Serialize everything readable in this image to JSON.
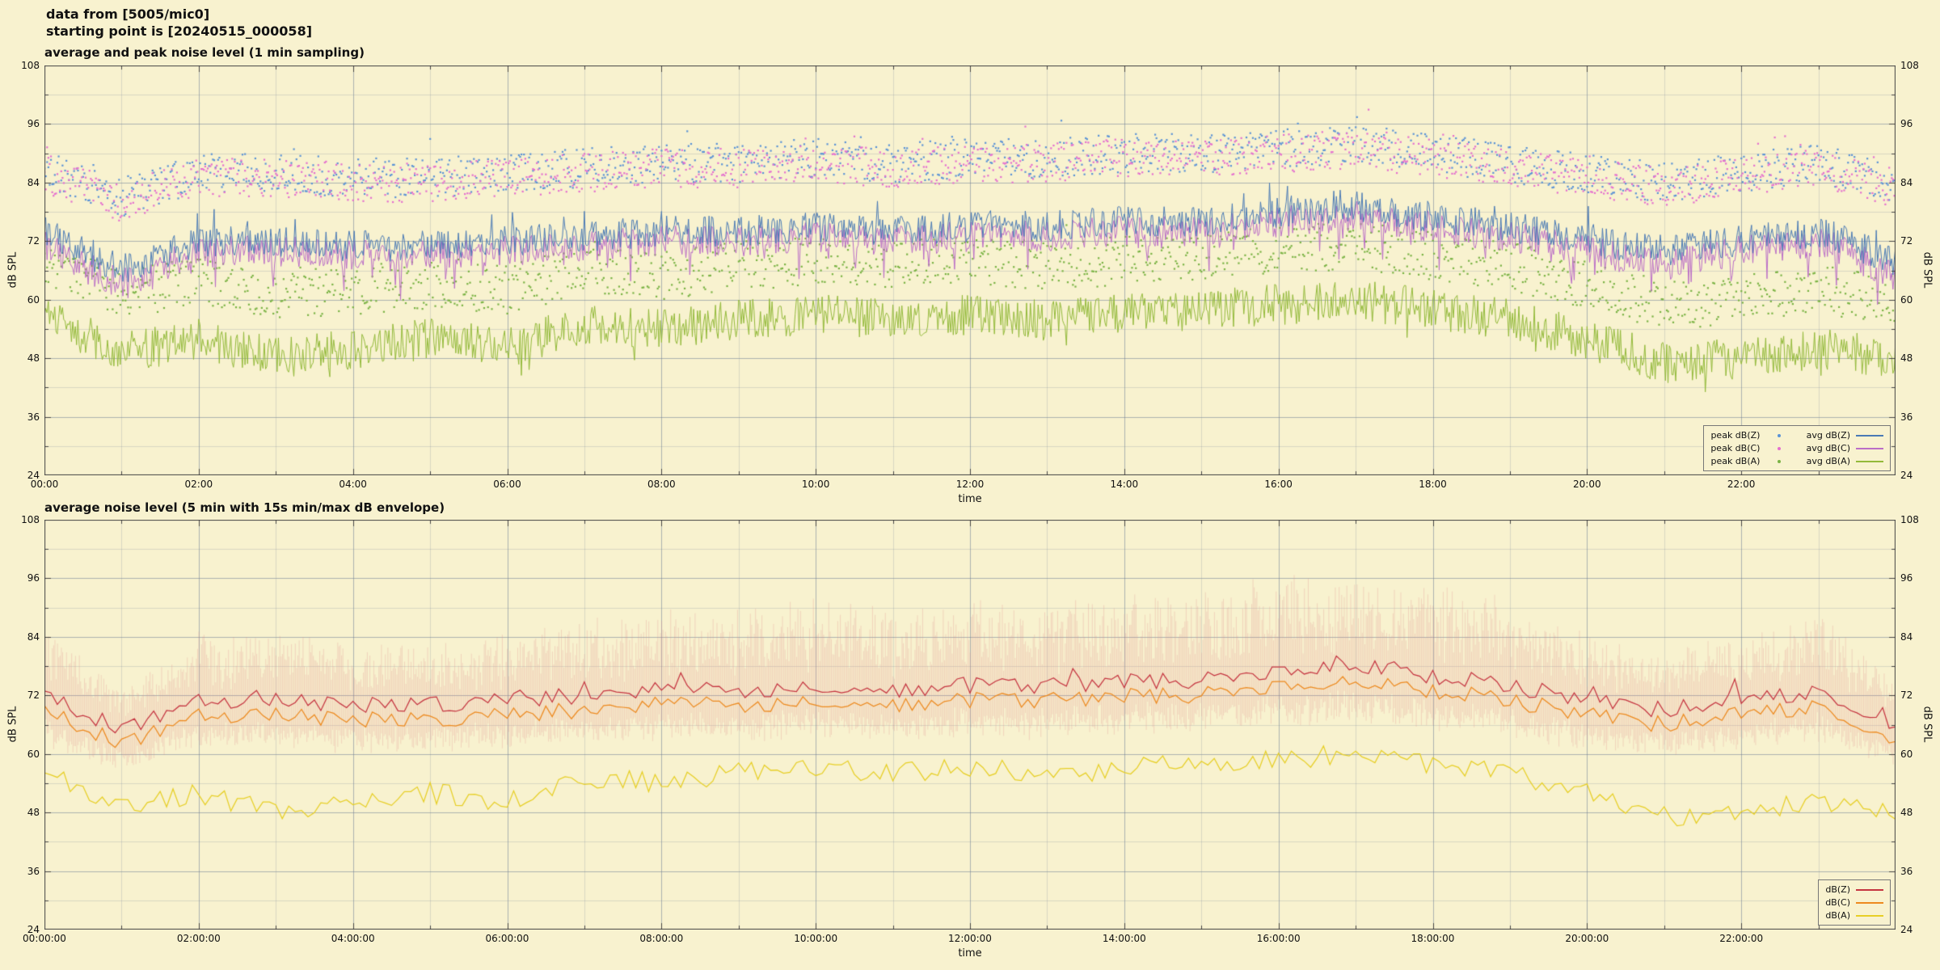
{
  "header": {
    "line1": "data from [5005/mic0]",
    "line2": "starting point is [20240515_000058]"
  },
  "colors": {
    "page_bg": "#f8f2cf",
    "plot_bg": "#f8f2cf",
    "grid_major": "rgba(110,125,150,0.55)",
    "grid_minor": "rgba(110,125,150,0.22)",
    "border": "#444444"
  },
  "seed": 20240515,
  "chart_data": [
    {
      "type": "line+scatter",
      "title": "average and peak noise level (1 min sampling)",
      "xlabel": "time",
      "ylabel_left": "dB SPL",
      "ylabel_right": "dB SPL",
      "ylim": [
        24,
        108
      ],
      "yticks": [
        24,
        36,
        48,
        60,
        72,
        84,
        96,
        108
      ],
      "x_range_hours": [
        0,
        24
      ],
      "xtick_hours": [
        0,
        2,
        4,
        6,
        8,
        10,
        12,
        14,
        16,
        18,
        20,
        22
      ],
      "xtick_labels": [
        "00:00",
        "02:00",
        "04:00",
        "06:00",
        "08:00",
        "10:00",
        "12:00",
        "14:00",
        "16:00",
        "18:00",
        "20:00",
        "22:00"
      ],
      "grid": true,
      "sampling_minutes": 1,
      "legend_cols": 2,
      "series": [
        {
          "name": "peak dB(Z)",
          "style": "scatter",
          "color": "#5b93d6",
          "group": 3,
          "spread": 4,
          "outlier": [
            0.03,
            5
          ],
          "hourly": [
            87,
            81,
            86,
            86,
            85,
            85,
            86,
            87,
            88,
            88,
            89,
            88,
            89,
            89,
            90,
            90,
            91,
            92,
            90,
            88,
            86,
            84,
            86,
            88,
            84
          ]
        },
        {
          "name": "peak dB(C)",
          "style": "scatter",
          "color": "#e570cf",
          "group": 4,
          "spread": 4,
          "outlier": [
            0.03,
            5
          ],
          "hourly": [
            86,
            80,
            85,
            85,
            84,
            84,
            85,
            86,
            87,
            87,
            88,
            87,
            88,
            88,
            89,
            89,
            90,
            91,
            89,
            87,
            85,
            83,
            85,
            87,
            83
          ]
        },
        {
          "name": "peak dB(A)",
          "style": "scatter",
          "color": "#7ab344",
          "group": 5,
          "spread": 5,
          "outlier": [
            0.02,
            4
          ],
          "hourly": [
            68,
            61,
            64,
            61,
            62,
            63,
            62,
            66,
            65,
            67,
            68,
            67,
            68,
            67,
            68,
            69,
            70,
            71,
            69,
            67,
            63,
            59,
            60,
            62,
            60
          ]
        },
        {
          "name": "avg dB(A)",
          "style": "line",
          "color": "#93ba3a",
          "group": 0,
          "jitter": 4.2,
          "dip": [
            0.04,
            5
          ],
          "hourly": [
            57,
            49,
            52,
            48,
            50,
            52,
            50,
            55,
            54,
            56,
            57,
            56,
            57,
            56,
            57,
            58,
            59,
            60,
            58,
            56,
            52,
            47,
            48,
            50,
            48
          ]
        },
        {
          "name": "avg dB(C)",
          "style": "line",
          "color": "#bb6ec7",
          "group": 1,
          "jitter": 3.2,
          "dip": [
            0.08,
            7
          ],
          "hourly": [
            71,
            63,
            70,
            70,
            69,
            69,
            70,
            71,
            72,
            72,
            73,
            72,
            73,
            73,
            74,
            74,
            76,
            77,
            75,
            73,
            70,
            67,
            70,
            72,
            65
          ]
        },
        {
          "name": "avg dB(Z)",
          "style": "line",
          "color": "#4a7ab5",
          "group": 1,
          "jitter": 3.2,
          "spike": [
            0.04,
            5
          ],
          "hourly": [
            74,
            66,
            72,
            72,
            71,
            71,
            72,
            73,
            74,
            74,
            75,
            74,
            75,
            75,
            76,
            76,
            78,
            79,
            77,
            75,
            72,
            70,
            72,
            74,
            68
          ]
        }
      ],
      "legend": [
        {
          "label": "peak dB(Z)",
          "swatch": "dot",
          "color": "#5b93d6"
        },
        {
          "label": "avg dB(Z)",
          "swatch": "line",
          "color": "#4a7ab5"
        },
        {
          "label": "peak dB(C)",
          "swatch": "dot",
          "color": "#e570cf"
        },
        {
          "label": "avg dB(C)",
          "swatch": "line",
          "color": "#bb6ec7"
        },
        {
          "label": "peak dB(A)",
          "swatch": "dot",
          "color": "#7ab344"
        },
        {
          "label": "avg dB(A)",
          "swatch": "line",
          "color": "#93ba3a"
        }
      ]
    },
    {
      "type": "line+envelope",
      "title": "average noise level (5 min with 15s min/max dB envelope)",
      "xlabel": "time",
      "ylabel_left": "dB SPL",
      "ylabel_right": "dB SPL",
      "ylim": [
        24,
        108
      ],
      "yticks": [
        24,
        36,
        48,
        60,
        72,
        84,
        96,
        108
      ],
      "x_range_hours": [
        0,
        24
      ],
      "xtick_hours": [
        0,
        2,
        4,
        6,
        8,
        10,
        12,
        14,
        16,
        18,
        20,
        22
      ],
      "xtick_labels": [
        "00:00:00",
        "02:00:00",
        "04:00:00",
        "06:00:00",
        "08:00:00",
        "10:00:00",
        "12:00:00",
        "14:00:00",
        "16:00:00",
        "18:00:00",
        "20:00:00",
        "22:00:00"
      ],
      "grid": true,
      "sampling_minutes": 5,
      "legend_cols": 1,
      "envelope": {
        "color": "#e09090",
        "alpha": 0.3,
        "top_series": 2,
        "bottom_series": 1
      },
      "series": [
        {
          "name": "dB(A)",
          "style": "line",
          "color": "#e7cf25",
          "group": 0,
          "jitter": 2.2,
          "hourly": [
            57,
            49,
            52,
            48,
            50,
            52,
            50,
            55,
            54,
            56,
            57,
            56,
            57,
            56,
            57,
            58,
            59,
            60,
            58,
            56,
            52,
            47,
            48,
            50,
            48
          ]
        },
        {
          "name": "dB(C)",
          "style": "line",
          "color": "#ed8a1f",
          "group": 1,
          "jitter": 1.7,
          "hourly": [
            69,
            62,
            68,
            68,
            67,
            67,
            68,
            69,
            70,
            70,
            71,
            70,
            71,
            71,
            72,
            72,
            74,
            75,
            73,
            71,
            68,
            66,
            68,
            70,
            63
          ]
        },
        {
          "name": "dB(Z)",
          "style": "line",
          "color": "#c53440",
          "group": 1,
          "jitter": 1.7,
          "spike": [
            0.05,
            3
          ],
          "hourly": [
            72,
            65,
            71,
            71,
            70,
            70,
            71,
            72,
            73,
            73,
            74,
            73,
            74,
            74,
            75,
            75,
            77,
            78,
            76,
            74,
            71,
            69,
            71,
            73,
            66
          ]
        }
      ],
      "legend": [
        {
          "label": "dB(Z)",
          "swatch": "line",
          "color": "#c53440"
        },
        {
          "label": "dB(C)",
          "swatch": "line",
          "color": "#ed8a1f"
        },
        {
          "label": "dB(A)",
          "swatch": "line",
          "color": "#e7cf25"
        }
      ]
    }
  ]
}
